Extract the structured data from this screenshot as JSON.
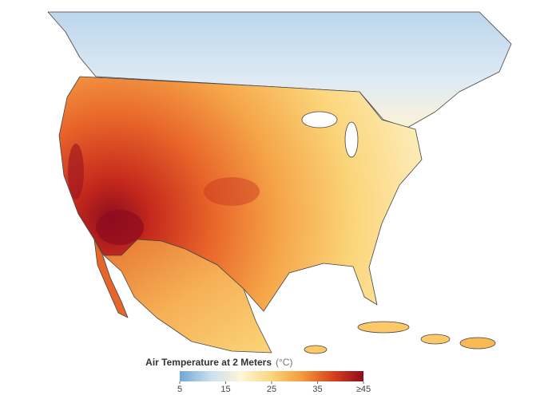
{
  "legend": {
    "title": "Air Temperature at 2 Meters",
    "unit": "(°C)",
    "range": [
      5,
      45
    ],
    "ticks": [
      5,
      15,
      25,
      35,
      {
        "value": 45,
        "label": "≥45"
      }
    ],
    "colors": [
      "#6fa8d6",
      "#c9def0",
      "#fdf6d8",
      "#fbd57a",
      "#f39a3c",
      "#d9411e",
      "#8e0c1e"
    ]
  }
}
